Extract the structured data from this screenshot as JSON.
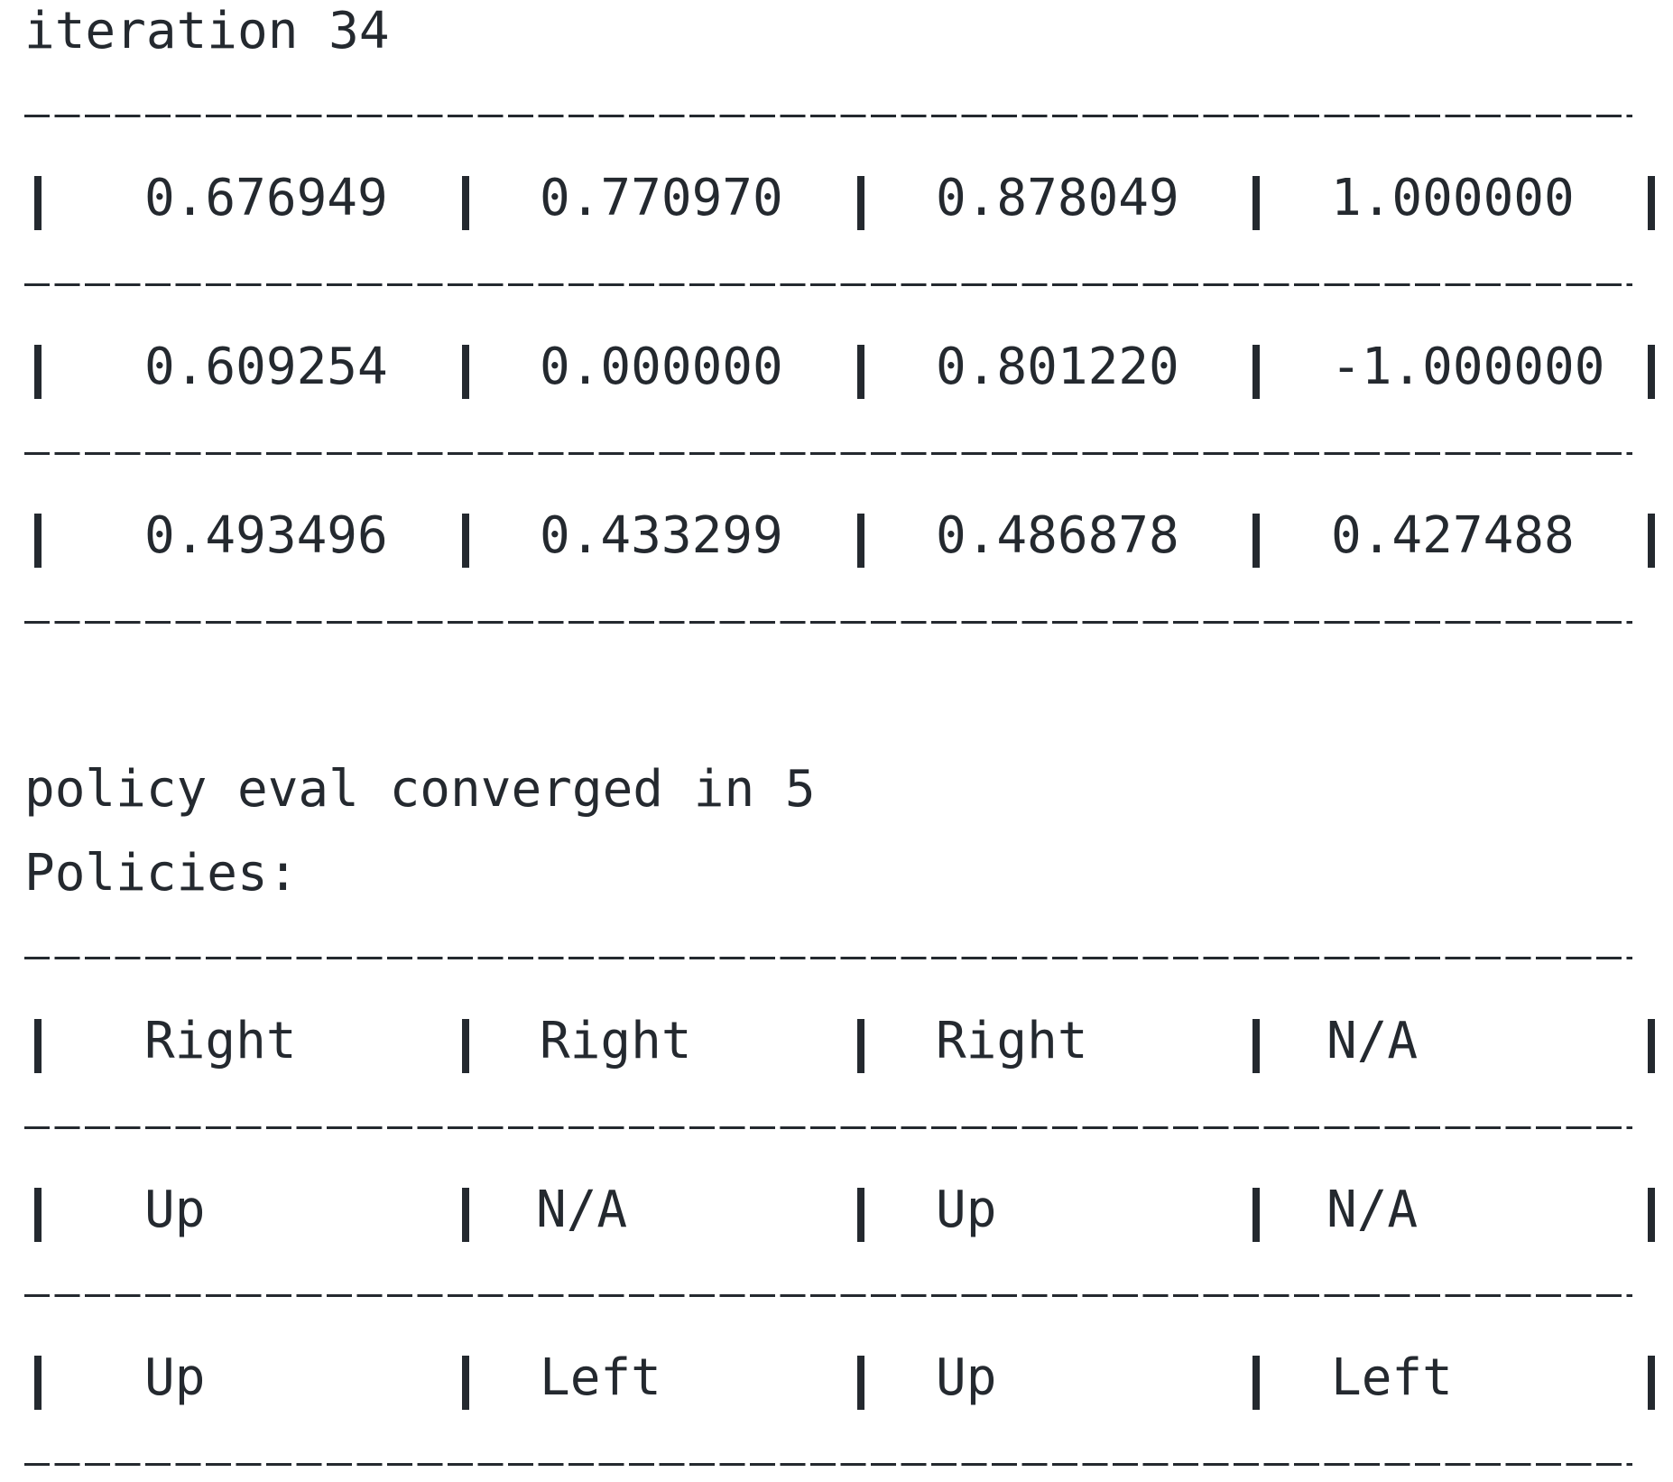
{
  "iteration_label": "iteration 34",
  "values": [
    [
      "0.676949",
      "0.770970",
      "0.878049",
      "1.000000"
    ],
    [
      "0.609254",
      "0.000000",
      "0.801220",
      "-1.000000"
    ],
    [
      "0.493496",
      "0.433299",
      "0.486878",
      "0.427488"
    ]
  ],
  "policy_eval_text": "policy eval converged in 5",
  "policies_label": "Policies:",
  "policies": [
    [
      "Right",
      "Right",
      "Right",
      "N/A"
    ],
    [
      "Up",
      "N/A",
      "Up",
      "N/A"
    ],
    [
      "Up",
      "Left",
      "Up",
      "Left"
    ]
  ]
}
